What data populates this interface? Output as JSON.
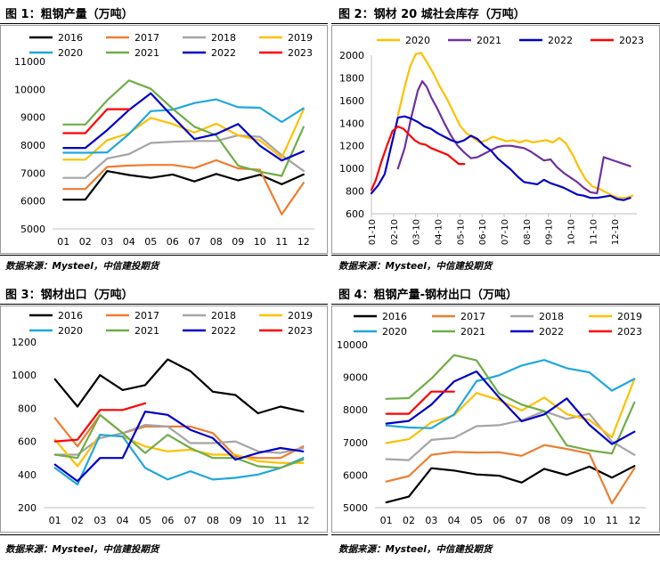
{
  "chart_data": [
    {
      "type": "line",
      "title": "图 1：粗钢产量（万吨）",
      "source": "数据来源：Mysteel，中信建投期货",
      "categories": [
        "01",
        "02",
        "03",
        "04",
        "05",
        "06",
        "07",
        "08",
        "09",
        "10",
        "11",
        "12"
      ],
      "ylim": [
        5000,
        11000
      ],
      "yticks": [
        "5000",
        "6000",
        "7000",
        "8000",
        "9000",
        "10000",
        "11000"
      ],
      "legend_position": "top",
      "grid": false,
      "series": [
        {
          "name": "2016",
          "color": "#000000",
          "values": [
            6050,
            6050,
            7070,
            6930,
            6830,
            6950,
            6700,
            6970,
            6740,
            6940,
            6600,
            6950
          ]
        },
        {
          "name": "2017",
          "color": "#ED7D31",
          "values": [
            6430,
            6430,
            7220,
            7270,
            7290,
            7290,
            7180,
            7460,
            7170,
            7120,
            5520,
            6650
          ]
        },
        {
          "name": "2018",
          "color": "#A5A5A5",
          "values": [
            6830,
            6830,
            7520,
            7680,
            8080,
            8120,
            8150,
            8150,
            8350,
            8300,
            7640,
            7080
          ]
        },
        {
          "name": "2019",
          "color": "#FFC000",
          "values": [
            7480,
            7480,
            8180,
            8430,
            8980,
            8760,
            8450,
            8770,
            8350,
            8170,
            7550,
            9280
          ]
        },
        {
          "name": "2020",
          "color": "#1EA7E0",
          "values": [
            7730,
            7730,
            7740,
            8400,
            9220,
            9270,
            9510,
            9640,
            9360,
            9340,
            8830,
            9320
          ]
        },
        {
          "name": "2021",
          "color": "#70AD47",
          "values": [
            8740,
            8740,
            9610,
            10320,
            10020,
            9310,
            8660,
            8350,
            7270,
            7050,
            6900,
            8650
          ]
        },
        {
          "name": "2022",
          "color": "#0000C8",
          "values": [
            7900,
            7900,
            8540,
            9260,
            9860,
            9020,
            8220,
            8400,
            8760,
            7980,
            7450,
            7780
          ]
        },
        {
          "name": "2023",
          "color": "#FF0000",
          "values": [
            8430,
            8430,
            9290,
            9290,
            null,
            null,
            null,
            null,
            null,
            null,
            null,
            null
          ]
        }
      ]
    },
    {
      "type": "line",
      "title": "图 2：钢材 20 城社会库存（万吨）",
      "source": "数据来源：Mysteel，中信建投期货",
      "xticks": [
        "01-10",
        "02-10",
        "03-10",
        "04-10",
        "05-10",
        "06-10",
        "07-10",
        "08-10",
        "09-10",
        "10-10",
        "11-10",
        "12-10"
      ],
      "xlim": [
        0,
        12
      ],
      "ylim": [
        600,
        2000
      ],
      "yticks": [
        "600",
        "800",
        "1000",
        "1200",
        "1400",
        "1600",
        "1800",
        "2000"
      ],
      "legend_position": "top",
      "grid": false,
      "series": [
        {
          "name": "2020",
          "color": "#FFC000",
          "x": [
            1.2,
            1.5,
            1.75,
            2.0,
            2.25,
            2.5,
            2.8,
            3.1,
            3.4,
            3.7,
            4.0,
            4.3,
            4.6,
            4.9,
            5.2,
            5.5,
            5.8,
            6.1,
            6.4,
            6.7,
            7.0,
            7.3,
            7.6,
            7.9,
            8.2,
            8.5,
            8.8,
            9.1,
            9.4,
            9.7,
            10.0,
            10.3,
            10.6,
            10.9,
            11.2,
            11.5,
            11.8
          ],
          "values": [
            1470,
            1720,
            1900,
            2010,
            2020,
            1940,
            1840,
            1720,
            1620,
            1500,
            1380,
            1310,
            1270,
            1230,
            1250,
            1280,
            1260,
            1240,
            1250,
            1230,
            1250,
            1230,
            1240,
            1250,
            1230,
            1270,
            1220,
            1120,
            1000,
            900,
            840,
            820,
            790,
            760,
            740,
            740,
            760
          ]
        },
        {
          "name": "2021",
          "color": "#7030A0",
          "x": [
            1.2,
            1.5,
            1.8,
            2.1,
            2.3,
            2.5,
            2.7,
            3.0,
            3.3,
            3.6,
            3.9,
            4.2,
            4.5,
            4.8,
            5.1,
            5.4,
            5.7,
            6.0,
            6.3,
            6.6,
            6.9,
            7.2,
            7.5,
            7.8,
            8.1,
            8.4,
            8.7,
            9.0,
            9.3,
            9.6,
            9.9,
            10.2,
            10.5,
            10.8,
            11.1,
            11.4,
            11.7
          ],
          "values": [
            1000,
            1180,
            1450,
            1690,
            1770,
            1720,
            1630,
            1520,
            1400,
            1290,
            1200,
            1140,
            1090,
            1100,
            1130,
            1160,
            1190,
            1200,
            1200,
            1190,
            1180,
            1150,
            1110,
            1070,
            1080,
            1010,
            960,
            920,
            880,
            830,
            790,
            780,
            1100,
            1080,
            1060,
            1040,
            1020
          ]
        },
        {
          "name": "2022",
          "color": "#0000C8",
          "x": [
            0,
            0.3,
            0.6,
            0.9,
            1.2,
            1.5,
            1.8,
            2.1,
            2.4,
            2.7,
            3.0,
            3.3,
            3.6,
            3.9,
            4.2,
            4.5,
            4.8,
            5.1,
            5.4,
            5.7,
            6.0,
            6.3,
            6.6,
            6.9,
            7.2,
            7.5,
            7.8,
            8.1,
            8.4,
            8.7,
            9.0,
            9.3,
            9.6,
            9.9,
            10.2,
            10.5,
            10.8,
            11.1,
            11.4,
            11.7
          ],
          "values": [
            780,
            850,
            950,
            1200,
            1450,
            1460,
            1440,
            1410,
            1370,
            1350,
            1310,
            1280,
            1250,
            1230,
            1250,
            1290,
            1260,
            1200,
            1160,
            1090,
            1040,
            990,
            930,
            880,
            870,
            860,
            900,
            870,
            850,
            830,
            800,
            770,
            760,
            740,
            740,
            750,
            760,
            730,
            720,
            740
          ]
        },
        {
          "name": "2023",
          "color": "#FF0000",
          "x": [
            0,
            0.2,
            0.45,
            0.7,
            0.95,
            1.2,
            1.45,
            1.7,
            1.95,
            2.2,
            2.45,
            2.7,
            2.95,
            3.2,
            3.45,
            3.7,
            3.95,
            4.2
          ],
          "values": [
            810,
            900,
            1060,
            1200,
            1330,
            1370,
            1350,
            1300,
            1250,
            1220,
            1210,
            1180,
            1160,
            1140,
            1120,
            1080,
            1040,
            1040
          ]
        }
      ]
    },
    {
      "type": "line",
      "title": "图 3：钢材出口（万吨）",
      "source": "数据来源：Mysteel，中信建投期货",
      "categories": [
        "01",
        "02",
        "03",
        "04",
        "05",
        "06",
        "07",
        "08",
        "09",
        "10",
        "11",
        "12"
      ],
      "ylim": [
        200,
        1200
      ],
      "yticks": [
        "200",
        "400",
        "600",
        "800",
        "1000",
        "1200"
      ],
      "legend_position": "top",
      "grid": false,
      "series": [
        {
          "name": "2016",
          "color": "#000000",
          "values": [
            975,
            810,
            1000,
            910,
            940,
            1095,
            1025,
            900,
            880,
            770,
            810,
            780
          ]
        },
        {
          "name": "2017",
          "color": "#ED7D31",
          "values": [
            740,
            570,
            760,
            650,
            690,
            690,
            690,
            650,
            510,
            500,
            500,
            570
          ]
        },
        {
          "name": "2018",
          "color": "#A5A5A5",
          "values": [
            520,
            520,
            620,
            650,
            700,
            690,
            590,
            590,
            600,
            540,
            530,
            560
          ]
        },
        {
          "name": "2019",
          "color": "#FFC000",
          "values": [
            610,
            450,
            640,
            630,
            570,
            540,
            550,
            520,
            520,
            480,
            470,
            470
          ]
        },
        {
          "name": "2020",
          "color": "#1EA7E0",
          "values": [
            440,
            340,
            640,
            630,
            440,
            370,
            420,
            370,
            380,
            400,
            440,
            500
          ]
        },
        {
          "name": "2021",
          "color": "#70AD47",
          "values": [
            520,
            500,
            760,
            650,
            530,
            640,
            560,
            500,
            500,
            450,
            440,
            490
          ]
        },
        {
          "name": "2022",
          "color": "#0000C8",
          "values": [
            460,
            360,
            500,
            500,
            780,
            760,
            670,
            620,
            490,
            530,
            560,
            540
          ]
        },
        {
          "name": "2023",
          "color": "#FF0000",
          "values": [
            600,
            610,
            790,
            790,
            830,
            null,
            null,
            null,
            null,
            null,
            null,
            null
          ]
        }
      ]
    },
    {
      "type": "line",
      "title": "图 4：粗钢产量-钢材出口（万吨）",
      "source": "数据来源：Mysteel，中信建投期货",
      "categories": [
        "01",
        "02",
        "03",
        "04",
        "05",
        "06",
        "07",
        "08",
        "09",
        "10",
        "11",
        "12"
      ],
      "ylim": [
        5000,
        10000
      ],
      "yticks": [
        "5000",
        "6000",
        "7000",
        "8000",
        "9000",
        "10000"
      ],
      "legend_position": "top",
      "grid": false,
      "series": [
        {
          "name": "2016",
          "color": "#000000",
          "values": [
            5160,
            5340,
            6210,
            6140,
            6020,
            5980,
            5770,
            6190,
            6000,
            6260,
            5920,
            6280
          ]
        },
        {
          "name": "2017",
          "color": "#ED7D31",
          "values": [
            5800,
            5970,
            6620,
            6710,
            6690,
            6700,
            6590,
            6920,
            6800,
            6660,
            5130,
            6210
          ]
        },
        {
          "name": "2018",
          "color": "#A5A5A5",
          "values": [
            6490,
            6460,
            7080,
            7140,
            7500,
            7530,
            7680,
            7960,
            7720,
            7880,
            7030,
            6620
          ]
        },
        {
          "name": "2019",
          "color": "#FFC000",
          "values": [
            6980,
            7100,
            7620,
            7830,
            8520,
            8300,
            7980,
            8380,
            7870,
            7690,
            7160,
            8950
          ]
        },
        {
          "name": "2020",
          "color": "#1EA7E0",
          "values": [
            7520,
            7460,
            7440,
            7860,
            8880,
            9060,
            9360,
            9530,
            9280,
            9150,
            8590,
            8950
          ]
        },
        {
          "name": "2021",
          "color": "#70AD47",
          "values": [
            8340,
            8360,
            8960,
            9680,
            9520,
            8500,
            8160,
            7960,
            6910,
            6760,
            6660,
            8230
          ]
        },
        {
          "name": "2022",
          "color": "#0000C8",
          "values": [
            7580,
            7660,
            8160,
            8870,
            9180,
            8380,
            7650,
            7860,
            8350,
            7540,
            6950,
            7330
          ]
        },
        {
          "name": "2023",
          "color": "#FF0000",
          "values": [
            7880,
            7880,
            8560,
            8560,
            null,
            null,
            null,
            null,
            null,
            null,
            null,
            null
          ]
        }
      ]
    }
  ]
}
